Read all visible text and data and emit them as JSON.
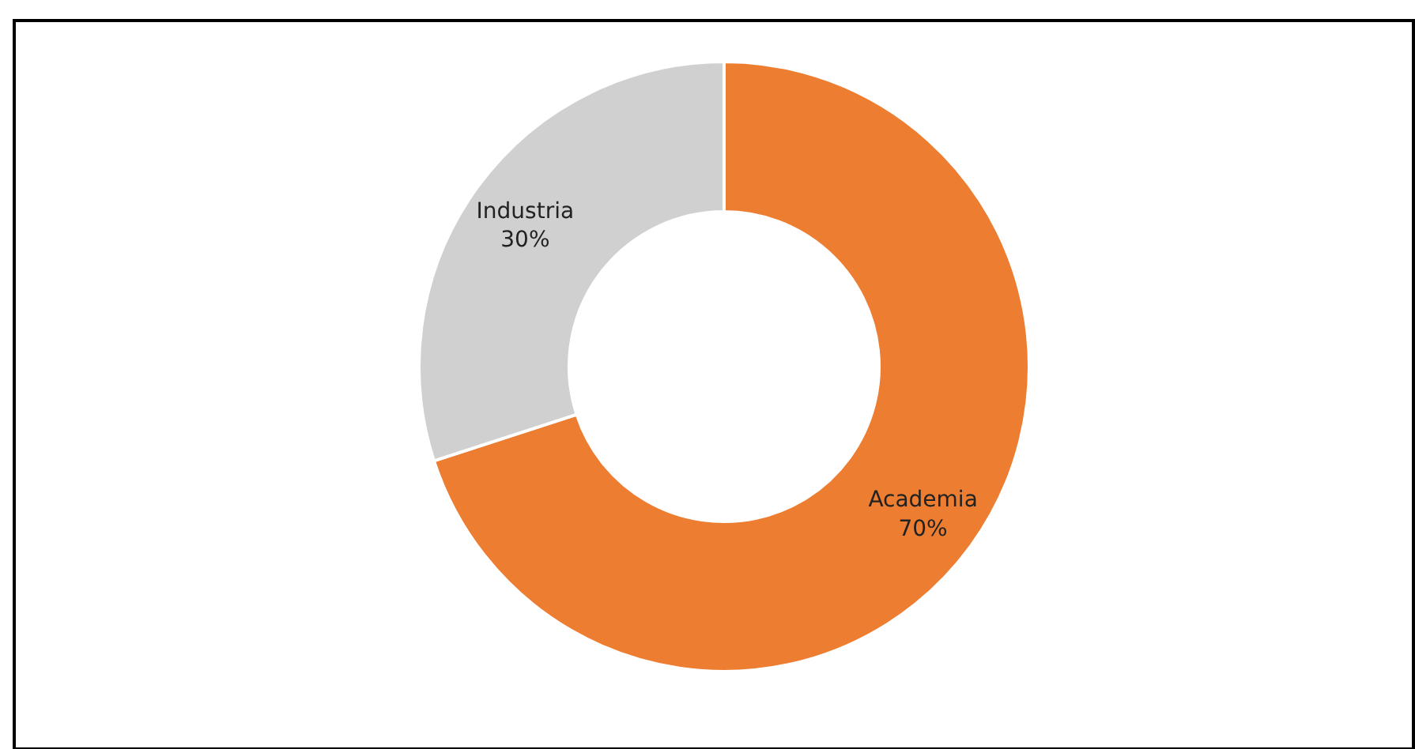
{
  "chart_data": {
    "type": "donut",
    "categories": [
      "Academia",
      "Industria"
    ],
    "values": [
      70,
      30
    ],
    "value_labels": [
      "70%",
      "30%"
    ],
    "colors": [
      "#ed7d31",
      "#d0d0d0"
    ]
  }
}
